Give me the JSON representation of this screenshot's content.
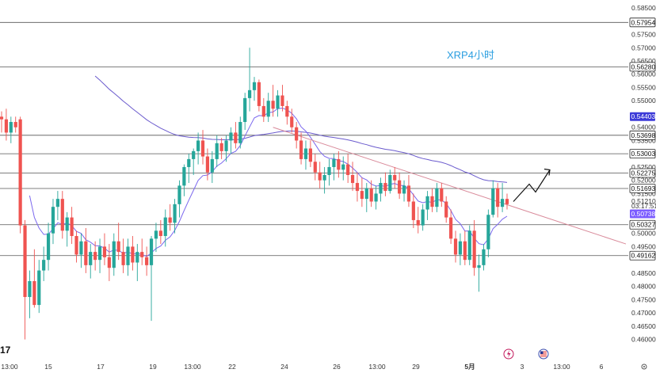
{
  "chart_data": {
    "type": "candlestick",
    "title": "XRP4小时",
    "y_ticks": [
      "0.58500",
      "0.57500",
      "0.57000",
      "0.56500",
      "0.56000",
      "0.55500",
      "0.55000",
      "0.54000",
      "0.53500",
      "0.52500",
      "0.52000",
      "0.51500",
      "0.51210",
      "0.50000",
      "0.49500",
      "0.48500",
      "0.48000",
      "0.47500",
      "0.47000",
      "0.46500",
      "0.46000"
    ],
    "ylim": [
      0.4575,
      0.5865
    ],
    "countdown": "03:17:51",
    "x_ticks": [
      "13:00",
      "15",
      "17",
      "19",
      "13:00",
      "22",
      "24",
      "26",
      "13:00",
      "29",
      "5月",
      "3",
      "13:00",
      "6"
    ],
    "horizontal_levels": [
      {
        "value": 0.57954,
        "label": "0.57954"
      },
      {
        "value": 0.5628,
        "label": "0.56280"
      },
      {
        "value": 0.53698,
        "label": "0.53698"
      },
      {
        "value": 0.53003,
        "label": "0.53003"
      },
      {
        "value": 0.52275,
        "label": "0.52275"
      },
      {
        "value": 0.51693,
        "label": "0.51693"
      },
      {
        "value": 0.50327,
        "label": "0.50327"
      },
      {
        "value": 0.49162,
        "label": "0.49162"
      }
    ],
    "badges": [
      {
        "value": 0.54403,
        "label": "0.54403",
        "style": "indigo"
      },
      {
        "value": 0.50738,
        "label": "0.50738",
        "style": "purple"
      }
    ],
    "candles": [
      {
        "o": 0.544,
        "h": 0.546,
        "l": 0.538,
        "c": 0.543
      },
      {
        "o": 0.543,
        "h": 0.547,
        "l": 0.535,
        "c": 0.538
      },
      {
        "o": 0.538,
        "h": 0.544,
        "l": 0.534,
        "c": 0.542
      },
      {
        "o": 0.542,
        "h": 0.544,
        "l": 0.538,
        "c": 0.54
      },
      {
        "o": 0.543,
        "h": 0.544,
        "l": 0.5,
        "c": 0.503
      },
      {
        "o": 0.503,
        "h": 0.505,
        "l": 0.46,
        "c": 0.476
      },
      {
        "o": 0.476,
        "h": 0.486,
        "l": 0.468,
        "c": 0.482
      },
      {
        "o": 0.482,
        "h": 0.494,
        "l": 0.472,
        "c": 0.473
      },
      {
        "o": 0.473,
        "h": 0.49,
        "l": 0.47,
        "c": 0.486
      },
      {
        "o": 0.486,
        "h": 0.495,
        "l": 0.482,
        "c": 0.49
      },
      {
        "o": 0.49,
        "h": 0.504,
        "l": 0.486,
        "c": 0.5
      },
      {
        "o": 0.5,
        "h": 0.513,
        "l": 0.496,
        "c": 0.51
      },
      {
        "o": 0.51,
        "h": 0.516,
        "l": 0.505,
        "c": 0.513
      },
      {
        "o": 0.513,
        "h": 0.516,
        "l": 0.498,
        "c": 0.501
      },
      {
        "o": 0.501,
        "h": 0.508,
        "l": 0.495,
        "c": 0.506
      },
      {
        "o": 0.506,
        "h": 0.51,
        "l": 0.496,
        "c": 0.499
      },
      {
        "o": 0.499,
        "h": 0.501,
        "l": 0.489,
        "c": 0.492
      },
      {
        "o": 0.492,
        "h": 0.5,
        "l": 0.487,
        "c": 0.497
      },
      {
        "o": 0.497,
        "h": 0.502,
        "l": 0.485,
        "c": 0.488
      },
      {
        "o": 0.488,
        "h": 0.496,
        "l": 0.483,
        "c": 0.493
      },
      {
        "o": 0.493,
        "h": 0.497,
        "l": 0.486,
        "c": 0.49
      },
      {
        "o": 0.49,
        "h": 0.498,
        "l": 0.485,
        "c": 0.495
      },
      {
        "o": 0.495,
        "h": 0.5,
        "l": 0.488,
        "c": 0.491
      },
      {
        "o": 0.491,
        "h": 0.496,
        "l": 0.482,
        "c": 0.487
      },
      {
        "o": 0.487,
        "h": 0.5,
        "l": 0.484,
        "c": 0.497
      },
      {
        "o": 0.497,
        "h": 0.504,
        "l": 0.49,
        "c": 0.493
      },
      {
        "o": 0.493,
        "h": 0.498,
        "l": 0.485,
        "c": 0.488
      },
      {
        "o": 0.488,
        "h": 0.498,
        "l": 0.484,
        "c": 0.495
      },
      {
        "o": 0.495,
        "h": 0.499,
        "l": 0.486,
        "c": 0.489
      },
      {
        "o": 0.489,
        "h": 0.496,
        "l": 0.482,
        "c": 0.493
      },
      {
        "o": 0.493,
        "h": 0.498,
        "l": 0.488,
        "c": 0.491
      },
      {
        "o": 0.491,
        "h": 0.495,
        "l": 0.484,
        "c": 0.488
      },
      {
        "o": 0.488,
        "h": 0.499,
        "l": 0.467,
        "c": 0.498
      },
      {
        "o": 0.498,
        "h": 0.504,
        "l": 0.493,
        "c": 0.501
      },
      {
        "o": 0.501,
        "h": 0.505,
        "l": 0.496,
        "c": 0.499
      },
      {
        "o": 0.499,
        "h": 0.509,
        "l": 0.495,
        "c": 0.506
      },
      {
        "o": 0.506,
        "h": 0.511,
        "l": 0.501,
        "c": 0.504
      },
      {
        "o": 0.504,
        "h": 0.513,
        "l": 0.5,
        "c": 0.511
      },
      {
        "o": 0.511,
        "h": 0.52,
        "l": 0.506,
        "c": 0.518
      },
      {
        "o": 0.518,
        "h": 0.526,
        "l": 0.514,
        "c": 0.525
      },
      {
        "o": 0.525,
        "h": 0.53,
        "l": 0.519,
        "c": 0.528
      },
      {
        "o": 0.528,
        "h": 0.532,
        "l": 0.522,
        "c": 0.531
      },
      {
        "o": 0.531,
        "h": 0.538,
        "l": 0.526,
        "c": 0.535
      },
      {
        "o": 0.535,
        "h": 0.539,
        "l": 0.526,
        "c": 0.529
      },
      {
        "o": 0.529,
        "h": 0.532,
        "l": 0.52,
        "c": 0.523
      },
      {
        "o": 0.523,
        "h": 0.531,
        "l": 0.519,
        "c": 0.528
      },
      {
        "o": 0.528,
        "h": 0.537,
        "l": 0.525,
        "c": 0.534
      },
      {
        "o": 0.534,
        "h": 0.536,
        "l": 0.528,
        "c": 0.531
      },
      {
        "o": 0.531,
        "h": 0.537,
        "l": 0.527,
        "c": 0.535
      },
      {
        "o": 0.535,
        "h": 0.54,
        "l": 0.53,
        "c": 0.538
      },
      {
        "o": 0.538,
        "h": 0.542,
        "l": 0.532,
        "c": 0.534
      },
      {
        "o": 0.534,
        "h": 0.544,
        "l": 0.532,
        "c": 0.542
      },
      {
        "o": 0.542,
        "h": 0.553,
        "l": 0.539,
        "c": 0.551
      },
      {
        "o": 0.551,
        "h": 0.57,
        "l": 0.546,
        "c": 0.554
      },
      {
        "o": 0.554,
        "h": 0.559,
        "l": 0.55,
        "c": 0.557
      },
      {
        "o": 0.557,
        "h": 0.558,
        "l": 0.546,
        "c": 0.548
      },
      {
        "o": 0.548,
        "h": 0.551,
        "l": 0.542,
        "c": 0.544
      },
      {
        "o": 0.544,
        "h": 0.553,
        "l": 0.542,
        "c": 0.55
      },
      {
        "o": 0.55,
        "h": 0.556,
        "l": 0.544,
        "c": 0.547
      },
      {
        "o": 0.547,
        "h": 0.554,
        "l": 0.544,
        "c": 0.552
      },
      {
        "o": 0.552,
        "h": 0.556,
        "l": 0.546,
        "c": 0.548
      },
      {
        "o": 0.548,
        "h": 0.55,
        "l": 0.541,
        "c": 0.544
      },
      {
        "o": 0.544,
        "h": 0.547,
        "l": 0.538,
        "c": 0.54
      },
      {
        "o": 0.54,
        "h": 0.542,
        "l": 0.532,
        "c": 0.535
      },
      {
        "o": 0.535,
        "h": 0.538,
        "l": 0.526,
        "c": 0.528
      },
      {
        "o": 0.528,
        "h": 0.535,
        "l": 0.524,
        "c": 0.532
      },
      {
        "o": 0.532,
        "h": 0.535,
        "l": 0.525,
        "c": 0.527
      },
      {
        "o": 0.527,
        "h": 0.53,
        "l": 0.52,
        "c": 0.523
      },
      {
        "o": 0.523,
        "h": 0.527,
        "l": 0.517,
        "c": 0.52
      },
      {
        "o": 0.52,
        "h": 0.525,
        "l": 0.515,
        "c": 0.522
      },
      {
        "o": 0.522,
        "h": 0.528,
        "l": 0.518,
        "c": 0.525
      },
      {
        "o": 0.525,
        "h": 0.53,
        "l": 0.52,
        "c": 0.528
      },
      {
        "o": 0.528,
        "h": 0.531,
        "l": 0.521,
        "c": 0.524
      },
      {
        "o": 0.524,
        "h": 0.529,
        "l": 0.52,
        "c": 0.526
      },
      {
        "o": 0.526,
        "h": 0.53,
        "l": 0.519,
        "c": 0.522
      },
      {
        "o": 0.522,
        "h": 0.527,
        "l": 0.516,
        "c": 0.519
      },
      {
        "o": 0.519,
        "h": 0.523,
        "l": 0.512,
        "c": 0.516
      },
      {
        "o": 0.516,
        "h": 0.521,
        "l": 0.51,
        "c": 0.513
      },
      {
        "o": 0.513,
        "h": 0.519,
        "l": 0.508,
        "c": 0.517
      },
      {
        "o": 0.517,
        "h": 0.52,
        "l": 0.51,
        "c": 0.512
      },
      {
        "o": 0.512,
        "h": 0.518,
        "l": 0.509,
        "c": 0.515
      },
      {
        "o": 0.515,
        "h": 0.521,
        "l": 0.512,
        "c": 0.519
      },
      {
        "o": 0.519,
        "h": 0.523,
        "l": 0.514,
        "c": 0.516
      },
      {
        "o": 0.516,
        "h": 0.524,
        "l": 0.515,
        "c": 0.522
      },
      {
        "o": 0.522,
        "h": 0.525,
        "l": 0.517,
        "c": 0.52
      },
      {
        "o": 0.52,
        "h": 0.523,
        "l": 0.513,
        "c": 0.515
      },
      {
        "o": 0.515,
        "h": 0.52,
        "l": 0.512,
        "c": 0.518
      },
      {
        "o": 0.518,
        "h": 0.522,
        "l": 0.51,
        "c": 0.512
      },
      {
        "o": 0.512,
        "h": 0.515,
        "l": 0.502,
        "c": 0.505
      },
      {
        "o": 0.505,
        "h": 0.51,
        "l": 0.5,
        "c": 0.503
      },
      {
        "o": 0.503,
        "h": 0.511,
        "l": 0.501,
        "c": 0.509
      },
      {
        "o": 0.509,
        "h": 0.516,
        "l": 0.505,
        "c": 0.514
      },
      {
        "o": 0.514,
        "h": 0.517,
        "l": 0.508,
        "c": 0.51
      },
      {
        "o": 0.51,
        "h": 0.519,
        "l": 0.508,
        "c": 0.517
      },
      {
        "o": 0.517,
        "h": 0.519,
        "l": 0.51,
        "c": 0.512
      },
      {
        "o": 0.512,
        "h": 0.514,
        "l": 0.504,
        "c": 0.506
      },
      {
        "o": 0.506,
        "h": 0.509,
        "l": 0.496,
        "c": 0.498
      },
      {
        "o": 0.498,
        "h": 0.501,
        "l": 0.489,
        "c": 0.492
      },
      {
        "o": 0.492,
        "h": 0.5,
        "l": 0.488,
        "c": 0.497
      },
      {
        "o": 0.497,
        "h": 0.501,
        "l": 0.488,
        "c": 0.49
      },
      {
        "o": 0.49,
        "h": 0.503,
        "l": 0.488,
        "c": 0.501
      },
      {
        "o": 0.501,
        "h": 0.505,
        "l": 0.484,
        "c": 0.487
      },
      {
        "o": 0.487,
        "h": 0.492,
        "l": 0.478,
        "c": 0.488
      },
      {
        "o": 0.488,
        "h": 0.496,
        "l": 0.486,
        "c": 0.494
      },
      {
        "o": 0.494,
        "h": 0.509,
        "l": 0.491,
        "c": 0.507
      },
      {
        "o": 0.507,
        "h": 0.52,
        "l": 0.506,
        "c": 0.517
      },
      {
        "o": 0.517,
        "h": 0.519,
        "l": 0.506,
        "c": 0.51
      },
      {
        "o": 0.51,
        "h": 0.519,
        "l": 0.508,
        "c": 0.513
      },
      {
        "o": 0.513,
        "h": 0.515,
        "l": 0.509,
        "c": 0.511
      }
    ],
    "up_color": "#26a69a",
    "down_color": "#ef5350",
    "ma_slow_color": "#6a5acd",
    "ma_fast_color": "#7b68ee",
    "trendline_color": "#d98a9a",
    "level_line_color": "#555555",
    "title_color": "#2a9ee0"
  }
}
